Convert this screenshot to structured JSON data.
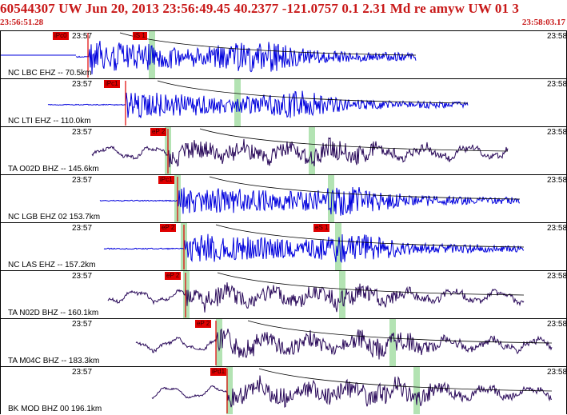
{
  "header": {
    "event_line": "60544307 UW Jun 20, 2013 23:56:49.45   40.2377 -121.0757  0.1 2.31 Md re amyw UW 01   3",
    "start_time": "23:56:51.28",
    "end_time": "23:58:03.17"
  },
  "colors": {
    "header_text": "#c81818",
    "trace_blue": "#0000dd",
    "trace_navy": "#2a0a5a",
    "pick_box": "#e00000",
    "s_window": "#a0dca0"
  },
  "panels": [
    {
      "station": "NC LBC EHZ -- 70.5km",
      "time_left": "23:57",
      "time_right": "23:58",
      "picks": [
        "iPc0",
        "iS 1"
      ],
      "color": "blue"
    },
    {
      "station": "NC LTI EHZ -- 110.0km",
      "time_left": "23:57",
      "time_right": "23:58",
      "picks": [
        "iPc1"
      ],
      "color": "blue"
    },
    {
      "station": "TA O02D BHZ -- 145.6km",
      "time_left": "23:57",
      "time_right": "23:58",
      "picks": [
        "eP 2"
      ],
      "color": "navy"
    },
    {
      "station": "NC LGB EHZ 02 153.7km",
      "time_left": "23:57",
      "time_right": "23:58",
      "picks": [
        "iPc1"
      ],
      "color": "blue"
    },
    {
      "station": "NC LAS EHZ -- 157.2km",
      "time_left": "23:57",
      "time_right": "23:58",
      "picks": [
        "eP 2",
        "eS 1"
      ],
      "color": "blue"
    },
    {
      "station": "TA N02D BHZ -- 160.1km",
      "time_left": "23:57",
      "time_right": "23:58",
      "picks": [
        "eP 2"
      ],
      "color": "navy"
    },
    {
      "station": "TA M04C BHZ -- 183.3km",
      "time_left": "23:57",
      "time_right": "23:58",
      "picks": [
        "eP 2"
      ],
      "color": "navy"
    },
    {
      "station": "BK MOD BHZ 00 196.1km",
      "time_left": "23:57",
      "time_right": "23:58",
      "picks": [
        "iPd1"
      ],
      "color": "navy"
    }
  ]
}
